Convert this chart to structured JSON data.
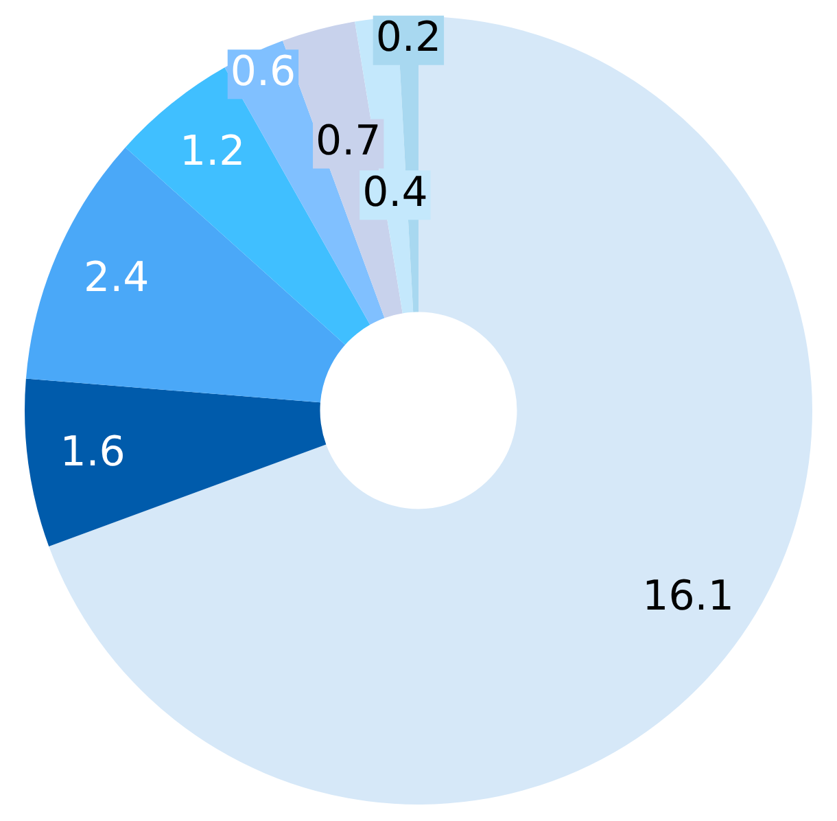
{
  "chart_data": {
    "type": "donut",
    "categories": [
      null,
      null,
      null,
      null,
      null,
      null,
      null,
      null
    ],
    "values": [
      16.1,
      1.6,
      2.4,
      1.2,
      0.6,
      0.7,
      0.4,
      0.2
    ],
    "colors": [
      "#d6e8f8",
      "#005bab",
      "#4aa8f8",
      "#40bfff",
      "#80c0ff",
      "#c8d2ec",
      "#c4e8fc",
      "#a8d8f0"
    ],
    "data_labels": true,
    "legend": false
  }
}
